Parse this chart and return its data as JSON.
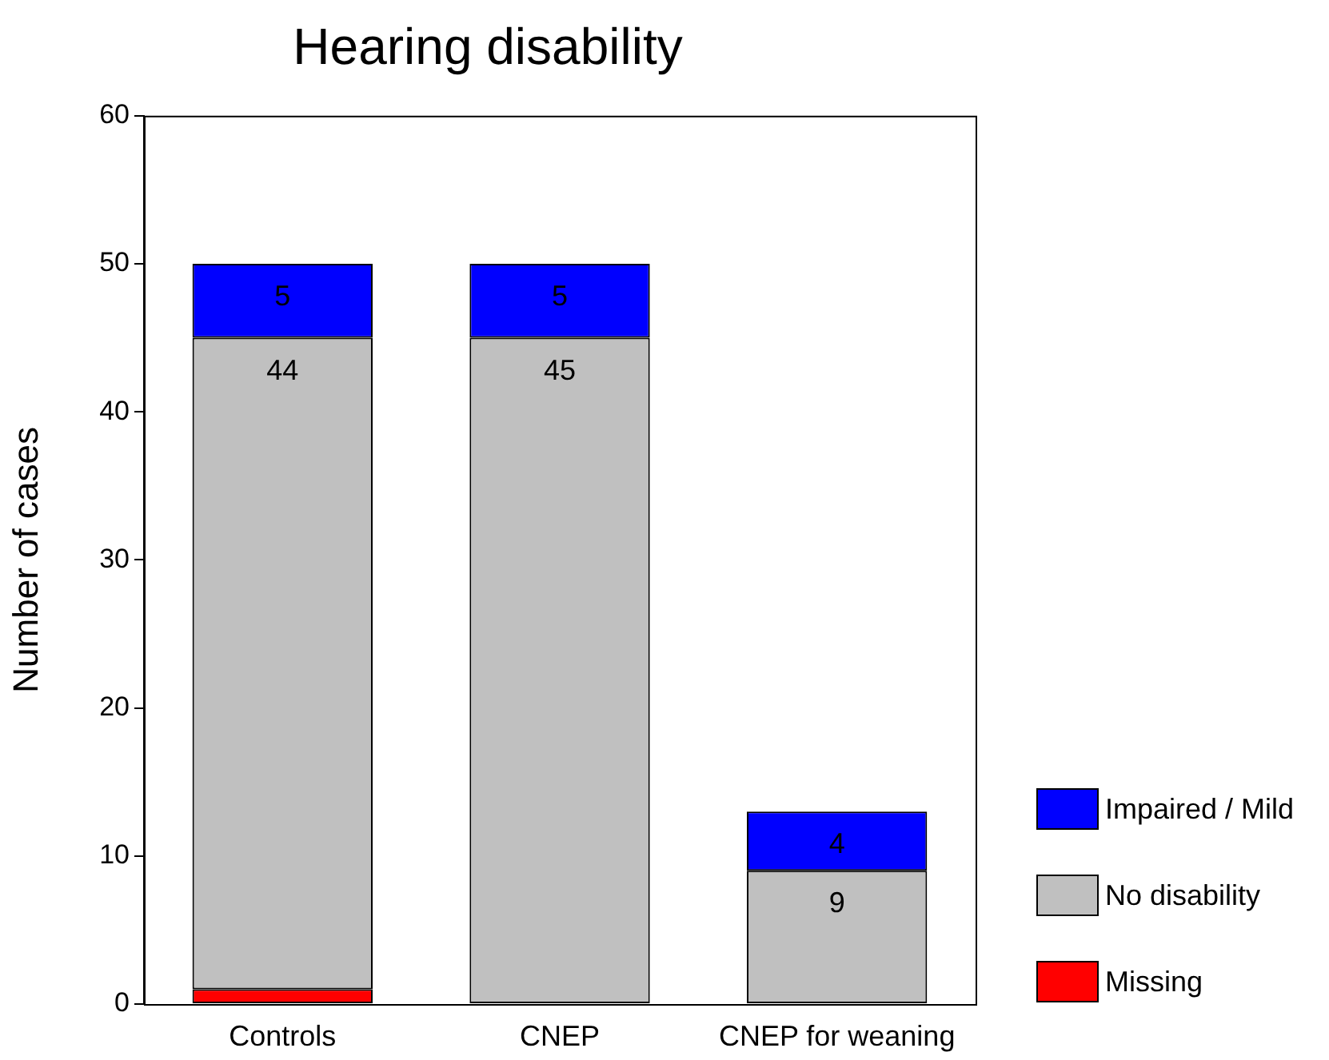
{
  "chart_data": {
    "type": "bar",
    "title": "Hearing disability",
    "ylabel": "Number of cases",
    "categories": [
      "Controls",
      "CNEP",
      "CNEP for weaning"
    ],
    "stacked": true,
    "ylim": [
      0,
      60
    ],
    "yticks": [
      0,
      10,
      20,
      30,
      40,
      50,
      60
    ],
    "grid": false,
    "legend": "right",
    "series": [
      {
        "name": "Missing",
        "color": "#ff0000",
        "values": [
          1,
          0,
          0
        ],
        "value_labels": [
          null,
          null,
          null
        ]
      },
      {
        "name": "No disability",
        "color": "#c0c0c0",
        "values": [
          44,
          45,
          9
        ],
        "value_labels": [
          "44",
          "45",
          "9"
        ]
      },
      {
        "name": "Impaired / Mild",
        "color": "#0000ff",
        "values": [
          5,
          5,
          4
        ],
        "value_labels": [
          "5",
          "5",
          "4"
        ]
      }
    ]
  }
}
